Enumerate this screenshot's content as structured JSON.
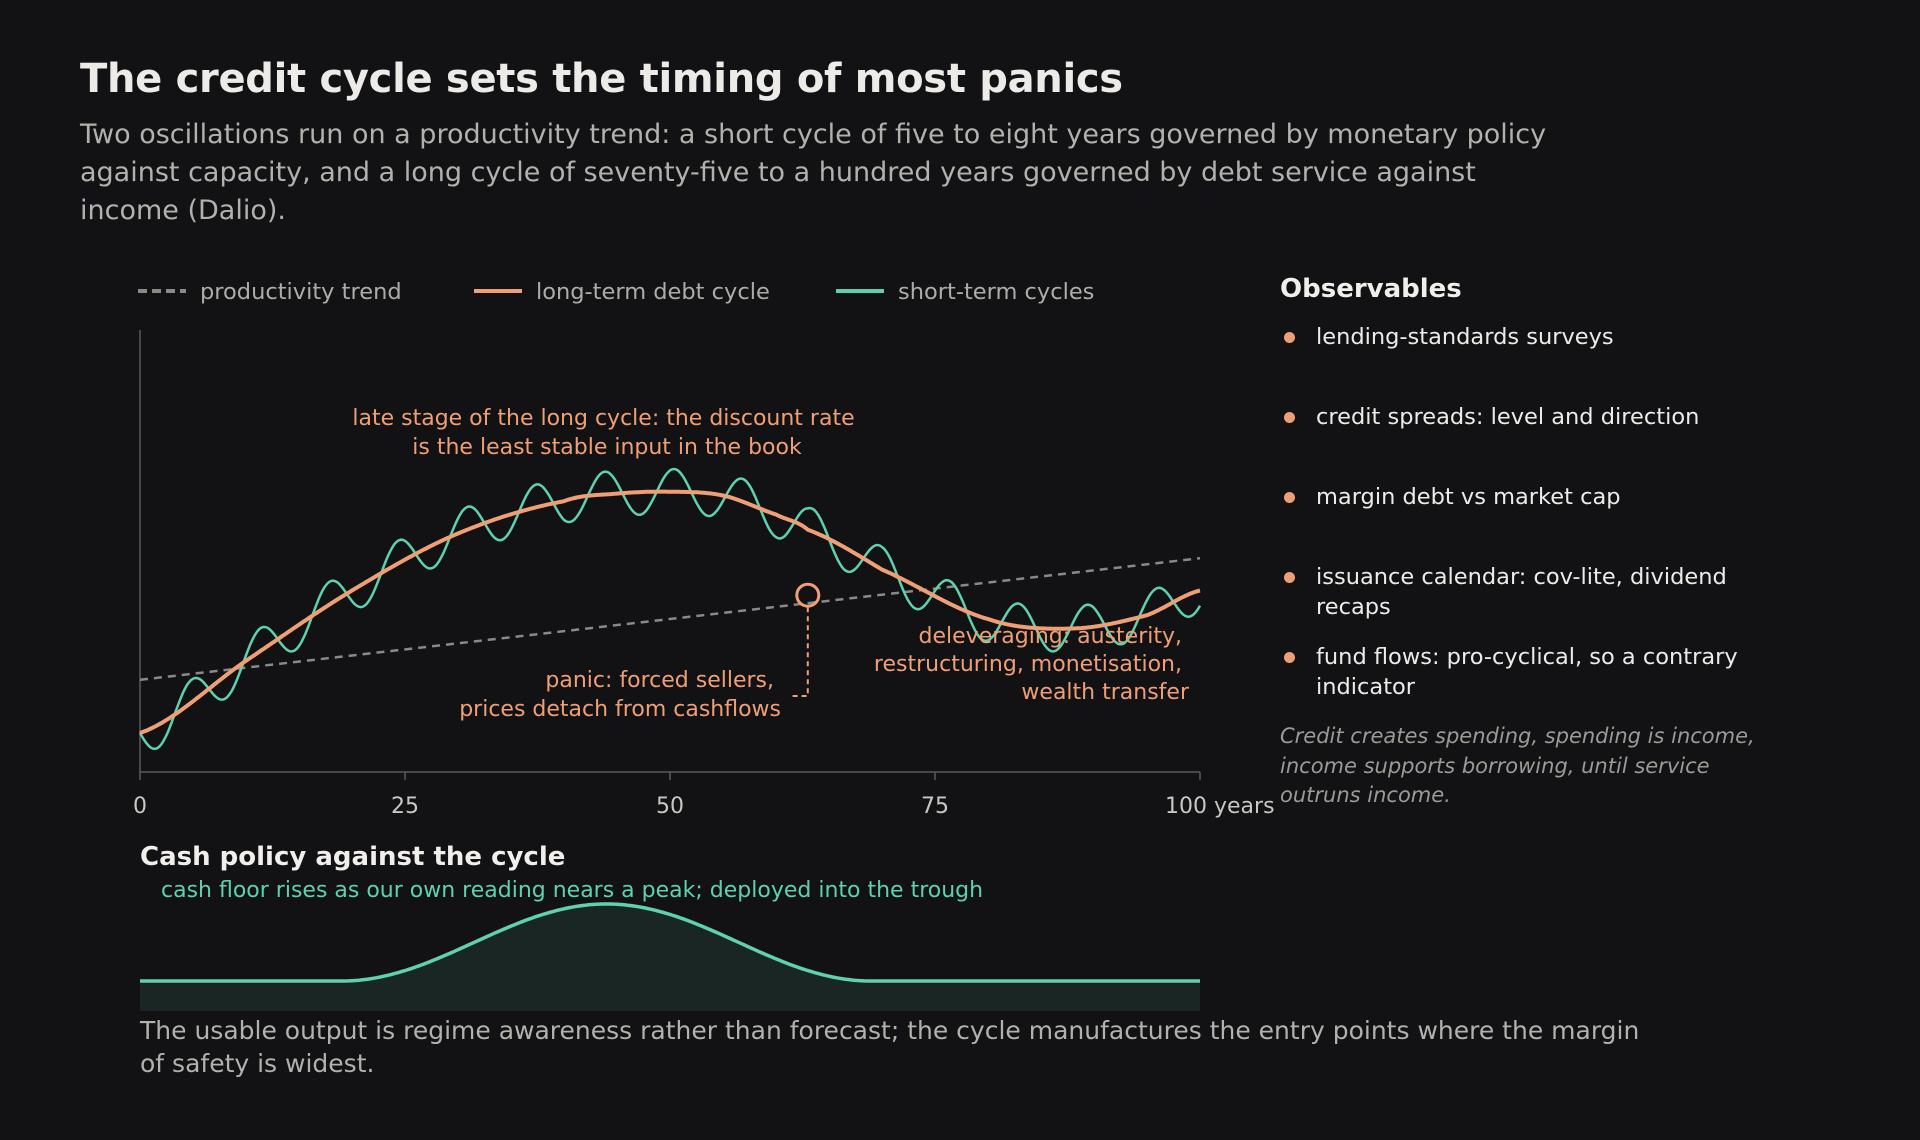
{
  "title": "The credit cycle sets the timing of most panics",
  "subtitle": "Two oscillations run on a productivity trend: a short cycle of five to eight years governed by monetary policy against capacity, and a long cycle of seventy-five to a hundred years governed by debt service against income (Dalio).",
  "legend": [
    {
      "label": "productivity trend",
      "color": "#8a8986",
      "style": "dashed"
    },
    {
      "label": "long-term debt cycle",
      "color": "#ef9f76",
      "style": "solid"
    },
    {
      "label": "short-term cycles",
      "color": "#5fd1ad",
      "style": "solid"
    }
  ],
  "chart_data": {
    "type": "line",
    "x_ticks": [
      "0",
      "25",
      "50",
      "75",
      "100 years"
    ],
    "xlim": [
      0,
      100
    ],
    "grid": false,
    "series": [
      {
        "name": "productivity trend",
        "style": "dashed",
        "color": "#8a8986",
        "x": [
          0,
          100
        ],
        "y": [
          0.28,
          0.92
        ]
      },
      {
        "name": "long-term debt cycle",
        "color": "#ef9f76",
        "x": [
          0,
          10,
          20,
          30,
          40,
          45,
          50,
          55,
          60,
          63,
          70,
          80,
          88,
          95,
          100
        ],
        "y": [
          0.0,
          0.38,
          0.75,
          1.05,
          1.22,
          1.26,
          1.27,
          1.25,
          1.15,
          1.07,
          0.86,
          0.6,
          0.55,
          0.62,
          0.75
        ]
      },
      {
        "name": "short-term cycles",
        "color": "#5fd1ad",
        "description_of_shape": "long-term debt cycle plus a short oscillation of roughly 6.5-year period",
        "period": 6.5,
        "amplitude": 0.12
      }
    ],
    "annotations": [
      {
        "text": [
          "late stage of the long cycle: the discount rate",
          "is the least stable input in the book"
        ]
      },
      {
        "text": [
          "panic: forced sellers,",
          "prices detach from cashflows"
        ],
        "x": 63
      },
      {
        "text": [
          "deleveraging: austerity,",
          "restructuring, monetisation,",
          "wealth transfer"
        ]
      }
    ]
  },
  "observables": {
    "heading": "Observables",
    "items": [
      "lending-standards surveys",
      "credit spreads: level and direction",
      "margin debt vs market cap",
      "issuance calendar: cov-lite, dividend recaps",
      "fund flows: pro-cyclical, so a contrary indicator"
    ],
    "note": "Credit creates spending, spending is income, income supports borrowing, until service outruns income."
  },
  "cash_policy": {
    "heading": "Cash policy against the cycle",
    "note": "cash floor rises as our own reading nears a peak; deployed into the trough",
    "color": "#5fd1ad"
  },
  "footer": "The usable output is regime awareness rather than forecast; the cycle manufactures the entry points where the margin of safety is widest.",
  "colors": {
    "background": "#121214",
    "accent_orange": "#ef9f76",
    "accent_teal": "#5fd1ad"
  }
}
